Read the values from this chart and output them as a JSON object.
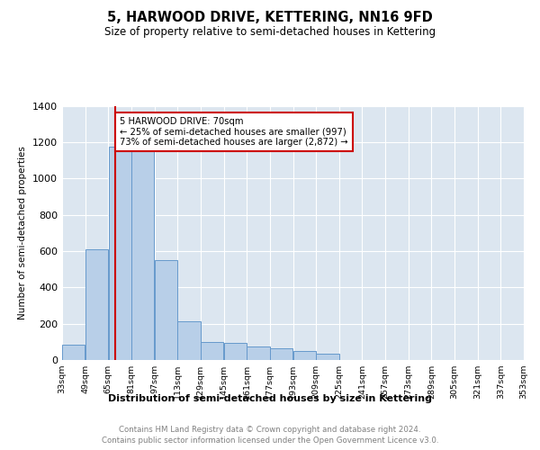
{
  "title": "5, HARWOOD DRIVE, KETTERING, NN16 9FD",
  "subtitle": "Size of property relative to semi-detached houses in Kettering",
  "xlabel": "Distribution of semi-detached houses by size in Kettering",
  "ylabel": "Number of semi-detached properties",
  "property_line_x": 70,
  "annotation_title": "5 HARWOOD DRIVE: 70sqm",
  "annotation_line1": "← 25% of semi-detached houses are smaller (997)",
  "annotation_line2": "73% of semi-detached houses are larger (2,872) →",
  "footer1": "Contains HM Land Registry data © Crown copyright and database right 2024.",
  "footer2": "Contains public sector information licensed under the Open Government Licence v3.0.",
  "bar_color": "#b8cfe8",
  "bar_edge_color": "#6699cc",
  "property_line_color": "#cc0000",
  "annotation_box_color": "#cc0000",
  "background_color": "#dce6f0",
  "ylim": [
    0,
    1400
  ],
  "tick_labels": [
    "33sqm",
    "49sqm",
    "65sqm",
    "81sqm",
    "97sqm",
    "113sqm",
    "129sqm",
    "145sqm",
    "161sqm",
    "177sqm",
    "193sqm",
    "209sqm",
    "225sqm",
    "241sqm",
    "257sqm",
    "273sqm",
    "289sqm",
    "305sqm",
    "321sqm",
    "337sqm",
    "353sqm"
  ],
  "bin_edges": [
    33,
    49,
    65,
    81,
    97,
    113,
    129,
    145,
    161,
    177,
    193,
    209,
    225,
    241,
    257,
    273,
    289,
    305,
    321,
    337,
    353
  ],
  "values": [
    85,
    610,
    1175,
    1165,
    550,
    215,
    100,
    95,
    75,
    65,
    50,
    35,
    0,
    0,
    0,
    0,
    0,
    0,
    0,
    0
  ]
}
